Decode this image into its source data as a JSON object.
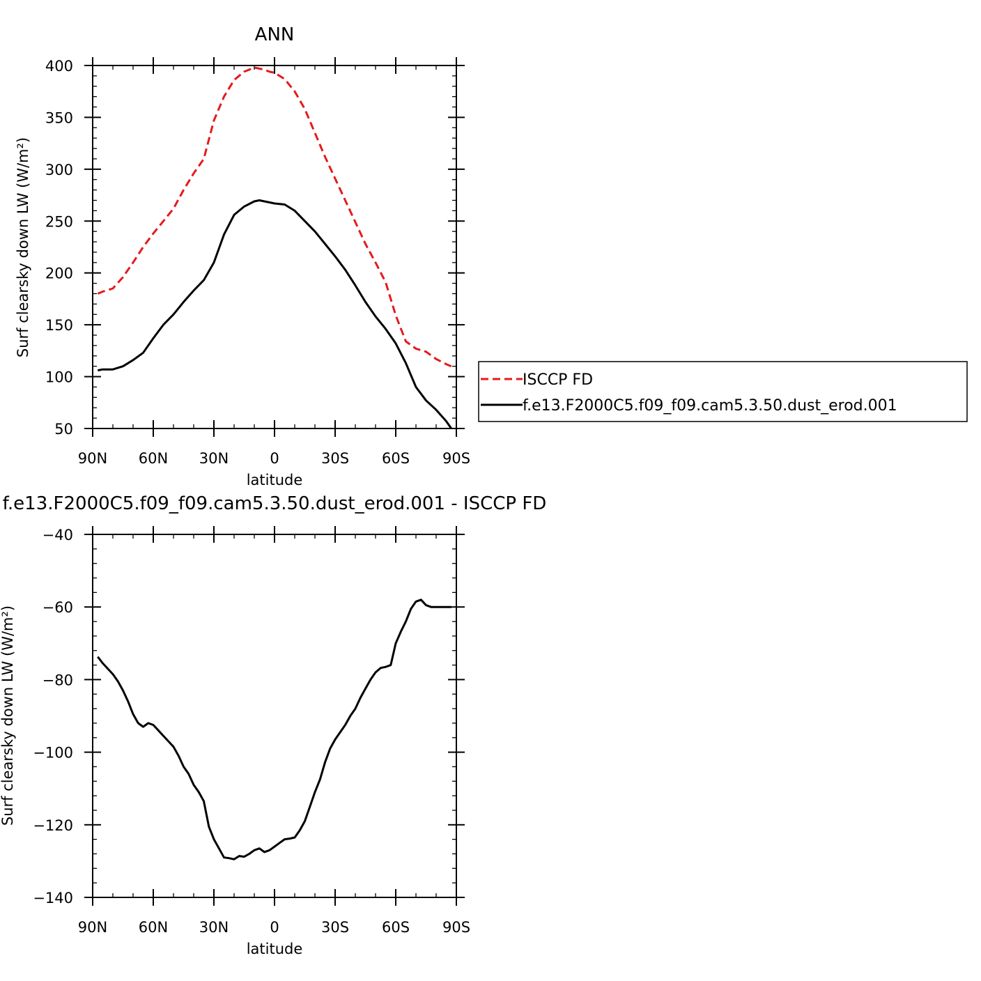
{
  "chart_data": [
    {
      "type": "line",
      "title": "ANN",
      "xlabel": "latitude",
      "ylabel": "Surf clearsky down LW (W/m²)",
      "xlim": [
        -90,
        90
      ],
      "ylim": [
        50,
        400
      ],
      "xticks": [
        -90,
        -60,
        -30,
        0,
        30,
        60,
        90
      ],
      "xtick_labels": [
        "90N",
        "60N",
        "30N",
        "0",
        "30S",
        "60S",
        "90S"
      ],
      "yticks": [
        50,
        100,
        150,
        200,
        250,
        300,
        350,
        400
      ],
      "ytick_labels": [
        "50",
        "100",
        "150",
        "200",
        "250",
        "300",
        "350",
        "400"
      ],
      "legend_placement": "right",
      "series": [
        {
          "name": "ISCCP FD",
          "color": "#e41a1c",
          "dash": "dashed",
          "x": [
            -87.5,
            -85,
            -80,
            -75,
            -70,
            -65,
            -60,
            -55,
            -50,
            -45,
            -40,
            -35,
            -30,
            -25,
            -20,
            -15,
            -10,
            -7.5,
            -5,
            -2.5,
            0,
            5,
            10,
            15,
            20,
            25,
            30,
            35,
            40,
            45,
            50,
            55,
            60,
            65,
            70,
            75,
            80,
            85,
            87.5
          ],
          "y": [
            180,
            182,
            185,
            196,
            210,
            225,
            238,
            250,
            262,
            280,
            296,
            310,
            347,
            370,
            386,
            394,
            398,
            397,
            396,
            394,
            393,
            387,
            375,
            358,
            335,
            312,
            291,
            270,
            249,
            228,
            210,
            191,
            159,
            134,
            127,
            124,
            117,
            112,
            110
          ]
        },
        {
          "name": "f.e13.F2000C5.f09_f09.cam5.3.50.dust_erod.001",
          "color": "#000000",
          "dash": "solid",
          "x": [
            -87.5,
            -85,
            -80,
            -75,
            -70,
            -65,
            -60,
            -55,
            -50,
            -45,
            -40,
            -35,
            -30,
            -25,
            -20,
            -15,
            -10,
            -7.5,
            -5,
            -2.5,
            0,
            5,
            10,
            15,
            20,
            25,
            30,
            35,
            40,
            45,
            50,
            55,
            60,
            65,
            70,
            75,
            80,
            85,
            87.5
          ],
          "y": [
            106,
            107,
            107,
            110,
            116,
            123,
            137,
            150,
            160,
            172,
            183,
            193,
            210,
            237,
            256,
            264,
            269,
            270,
            269,
            268,
            267,
            266,
            260,
            250,
            240,
            228,
            216,
            203,
            188,
            172,
            158,
            146,
            132,
            113,
            90,
            77,
            68,
            57,
            50
          ]
        }
      ]
    },
    {
      "type": "line",
      "title": "f.e13.F2000C5.f09_f09.cam5.3.50.dust_erod.001 - ISCCP FD",
      "xlabel": "latitude",
      "ylabel": "Surf clearsky down LW (W/m²)",
      "xlim": [
        -90,
        90
      ],
      "ylim": [
        -140,
        -40
      ],
      "xticks": [
        -90,
        -60,
        -30,
        0,
        30,
        60,
        90
      ],
      "xtick_labels": [
        "90N",
        "60N",
        "30N",
        "0",
        "30S",
        "60S",
        "90S"
      ],
      "yticks": [
        -140,
        -120,
        -100,
        -80,
        -60,
        -40
      ],
      "ytick_labels": [
        "−140",
        "−120",
        "−100",
        "−80",
        "−60",
        "−40"
      ],
      "series": [
        {
          "color": "#000000",
          "dash": "solid",
          "x": [
            -87.5,
            -85,
            -80,
            -77.5,
            -75,
            -72.5,
            -70,
            -67.5,
            -65,
            -62.5,
            -60,
            -57.5,
            -55,
            -52.5,
            -50,
            -47.5,
            -45,
            -42.5,
            -40,
            -37.5,
            -35,
            -32.5,
            -30,
            -27.5,
            -25,
            -22.5,
            -20,
            -17.5,
            -15,
            -12.5,
            -10,
            -7.5,
            -5,
            -2.5,
            0,
            2.5,
            5,
            7.5,
            10,
            12.5,
            15,
            17.5,
            20,
            22.5,
            25,
            27.5,
            30,
            32.5,
            35,
            37.5,
            40,
            42.5,
            45,
            47.5,
            50,
            52.5,
            55,
            57.5,
            60,
            62.5,
            65,
            67.5,
            70,
            72.5,
            75,
            77.5,
            80,
            82.5,
            85,
            87.5
          ],
          "y": [
            -73.7,
            -75.5,
            -78.5,
            -80.5,
            -83,
            -86,
            -89.5,
            -92,
            -93,
            -92,
            -92.5,
            -94,
            -95.5,
            -97,
            -98.5,
            -101,
            -104,
            -106,
            -109,
            -111,
            -113.5,
            -120.5,
            -124,
            -126.5,
            -129,
            -129.2,
            -129.5,
            -128.6,
            -128.8,
            -128,
            -127,
            -126.5,
            -127.5,
            -127,
            -126,
            -125,
            -124,
            -123.8,
            -123.5,
            -121.5,
            -119,
            -115,
            -111,
            -107.5,
            -102.8,
            -99,
            -96.5,
            -94.5,
            -92.5,
            -90,
            -88,
            -85,
            -82.5,
            -80,
            -78,
            -76.8,
            -76.5,
            -76,
            -70,
            -66.8,
            -64,
            -60.5,
            -58.5,
            -58,
            -59.5,
            -60,
            -60,
            -60,
            -60,
            -60
          ]
        }
      ]
    }
  ]
}
